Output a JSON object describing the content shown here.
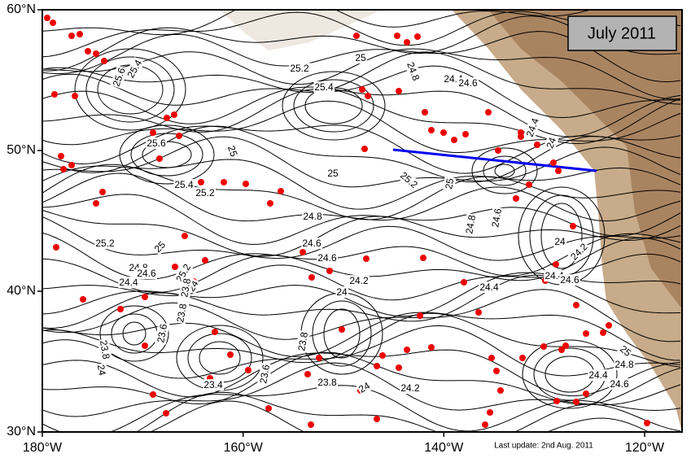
{
  "map": {
    "title": "July 2011",
    "footer": "Last update: 2nd Aug. 2011",
    "x_axis": {
      "ticks": [
        "180°W",
        "160°W",
        "140°W",
        "120°W"
      ]
    },
    "y_axis": {
      "ticks": [
        "60°N",
        "50°N",
        "40°N",
        "30°N"
      ]
    },
    "contour_labels": [
      "25.6",
      "25.4",
      "25.2",
      "25.4",
      "25",
      "24.8",
      "24.4",
      "24.6",
      "25.6",
      "25",
      "25",
      "25.4",
      "25.2",
      "25.2",
      "25",
      "24.8",
      "24.8",
      "24.6",
      "24.6",
      "25.2",
      "25",
      "24.6",
      "24.8",
      "24.4",
      "24.6",
      "25.2",
      "24",
      "24",
      "24.2",
      "24.4",
      "24",
      "24.2",
      "24.4",
      "24.6",
      "23.8",
      "23.8",
      "23.6",
      "23.8",
      "24",
      "23.6",
      "23.4",
      "23.8",
      "23.8",
      "24",
      "24.2",
      "25",
      "24.8",
      "24.4",
      "24.6",
      "24.4",
      "24"
    ]
  }
}
